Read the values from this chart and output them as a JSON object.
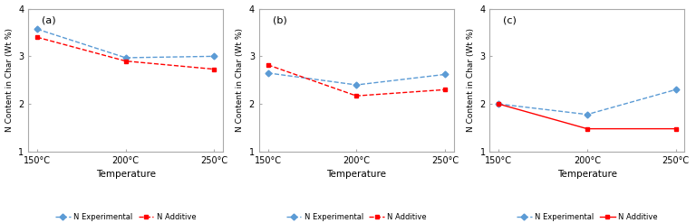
{
  "temps": [
    150,
    200,
    250
  ],
  "temp_labels": [
    "150°C",
    "200°C",
    "250°C"
  ],
  "panels": [
    {
      "label": "(a)",
      "exp_values": [
        3.57,
        2.97,
        3.0
      ],
      "add_values": [
        3.4,
        2.9,
        2.73
      ],
      "add_linestyle": "--"
    },
    {
      "label": "(b)",
      "exp_values": [
        2.65,
        2.4,
        2.62
      ],
      "add_values": [
        2.82,
        2.17,
        2.3
      ],
      "add_linestyle": "--"
    },
    {
      "label": "(c)",
      "exp_values": [
        2.0,
        1.78,
        2.3
      ],
      "add_values": [
        2.0,
        1.48,
        1.48
      ],
      "add_linestyle": "-"
    }
  ],
  "ylim": [
    1,
    4
  ],
  "yticks": [
    1,
    2,
    3,
    4
  ],
  "ylabel": "N Content in Char (Wt %)",
  "xlabel": "Temperature",
  "exp_color": "#5B9BD5",
  "add_color": "#FF0000",
  "legend_exp": "N Experimental",
  "legend_add": "N Additive",
  "background_color": "#FFFFFF"
}
